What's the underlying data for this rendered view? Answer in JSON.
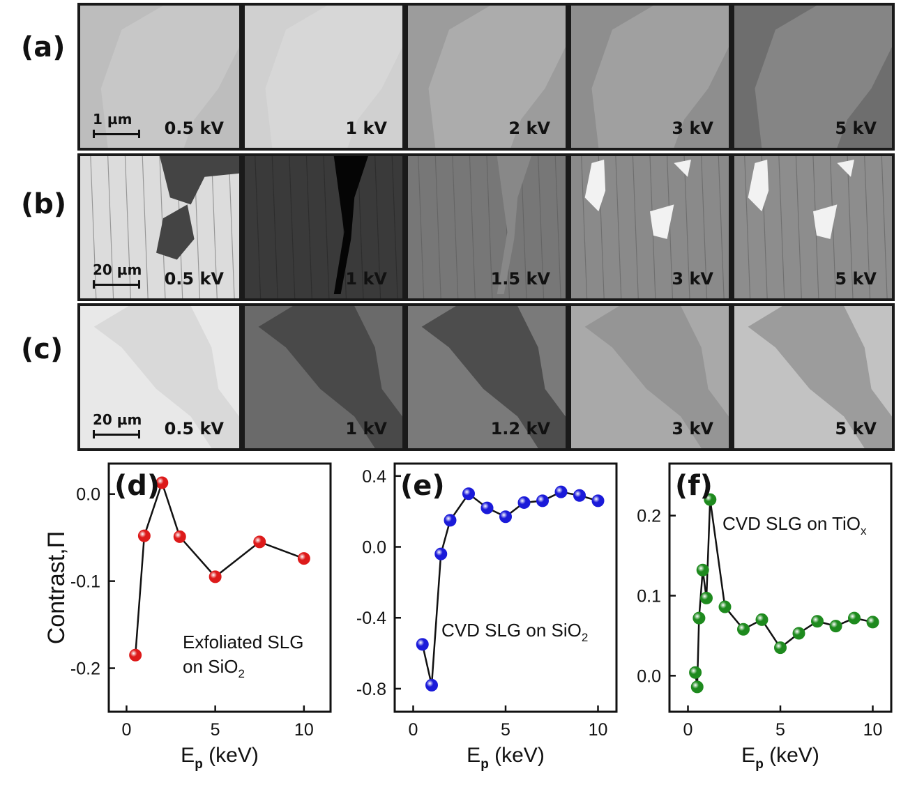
{
  "rows": [
    {
      "label": "(a)",
      "scalebar": "1 µm",
      "panels": [
        "0.5 kV",
        "1 kV",
        "2 kV",
        "3 kV",
        "5 kV"
      ],
      "shades": [
        "#bdbdbd",
        "#d0d0d0",
        "#9c9c9c",
        "#8e8e8e",
        "#6e6e6e"
      ]
    },
    {
      "label": "(b)",
      "scalebar": "20 µm",
      "panels": [
        "0.5 kV",
        "1 kV",
        "1.5 kV",
        "3 kV",
        "5 kV"
      ],
      "shades": [
        "#dcdcdc",
        "#3a3a3a",
        "#777777",
        "#8a8a8a",
        "#8d8d8d"
      ]
    },
    {
      "label": "(c)",
      "scalebar": "20 µm",
      "panels": [
        "0.5 kV",
        "1 kV",
        "1.2 kV",
        "3 kV",
        "5 kV"
      ],
      "shades": [
        "#e8e8e8",
        "#6a6a6a",
        "#7a7a7a",
        "#a9a9a9",
        "#c2c2c2"
      ]
    }
  ],
  "chart_data": [
    {
      "type": "line",
      "panel": "(d)",
      "annotation_lines": [
        "Exfoliated SLG",
        "on SiO",
        "2"
      ],
      "color": "#dd1a1a",
      "xlabel": "E",
      "xlabel_sub": "p",
      "xlabel_unit": " (keV)",
      "ylabel": "Contrast,Π",
      "xlim": [
        -1,
        11.5
      ],
      "ylim": [
        -0.25,
        0.035
      ],
      "xticks": [
        0,
        5,
        10
      ],
      "xtick_labels": [
        "0",
        "5",
        "10"
      ],
      "yticks": [
        -0.2,
        -0.1,
        0.0
      ],
      "ytick_labels": [
        "-0.2",
        "-0.1",
        "0.0"
      ],
      "x": [
        0.5,
        1,
        2,
        3,
        5,
        7.5,
        10
      ],
      "y": [
        -0.185,
        -0.048,
        0.013,
        -0.049,
        -0.095,
        -0.055,
        -0.074
      ]
    },
    {
      "type": "line",
      "panel": "(e)",
      "annotation_lines": [
        "CVD SLG on SiO",
        "2"
      ],
      "color": "#1a1ad9",
      "xlabel": "E",
      "xlabel_sub": "p",
      "xlabel_unit": " (keV)",
      "ylabel": "",
      "xlim": [
        -1,
        11
      ],
      "ylim": [
        -0.93,
        0.47
      ],
      "xticks": [
        0,
        5,
        10
      ],
      "xtick_labels": [
        "0",
        "5",
        "10"
      ],
      "yticks": [
        -0.8,
        -0.4,
        0.0,
        0.4
      ],
      "ytick_labels": [
        "-0.8",
        "-0.4",
        "0.0",
        "0.4"
      ],
      "x": [
        0.5,
        1,
        1.5,
        2,
        3,
        4,
        5,
        6,
        7,
        8,
        9,
        10
      ],
      "y": [
        -0.55,
        -0.78,
        -0.04,
        0.15,
        0.3,
        0.22,
        0.17,
        0.25,
        0.26,
        0.31,
        0.29,
        0.26
      ]
    },
    {
      "type": "line",
      "panel": "(f)",
      "annotation_lines": [
        "CVD SLG on TiO",
        "x"
      ],
      "color": "#1e8a1e",
      "xlabel": "E",
      "xlabel_sub": "p",
      "xlabel_unit": " (keV)",
      "ylabel": "",
      "xlim": [
        -1,
        11
      ],
      "ylim": [
        -0.045,
        0.265
      ],
      "xticks": [
        0,
        5,
        10
      ],
      "xtick_labels": [
        "0",
        "5",
        "10"
      ],
      "yticks": [
        0.0,
        0.1,
        0.2
      ],
      "ytick_labels": [
        "0.0",
        "0.1",
        "0.2"
      ],
      "x": [
        0.4,
        0.5,
        0.6,
        0.8,
        1.0,
        1.2,
        2,
        3,
        4,
        5,
        6,
        7,
        8,
        9,
        10
      ],
      "y": [
        0.004,
        -0.014,
        0.072,
        0.132,
        0.097,
        0.22,
        0.086,
        0.058,
        0.07,
        0.035,
        0.053,
        0.068,
        0.062,
        0.072,
        0.067
      ]
    }
  ]
}
